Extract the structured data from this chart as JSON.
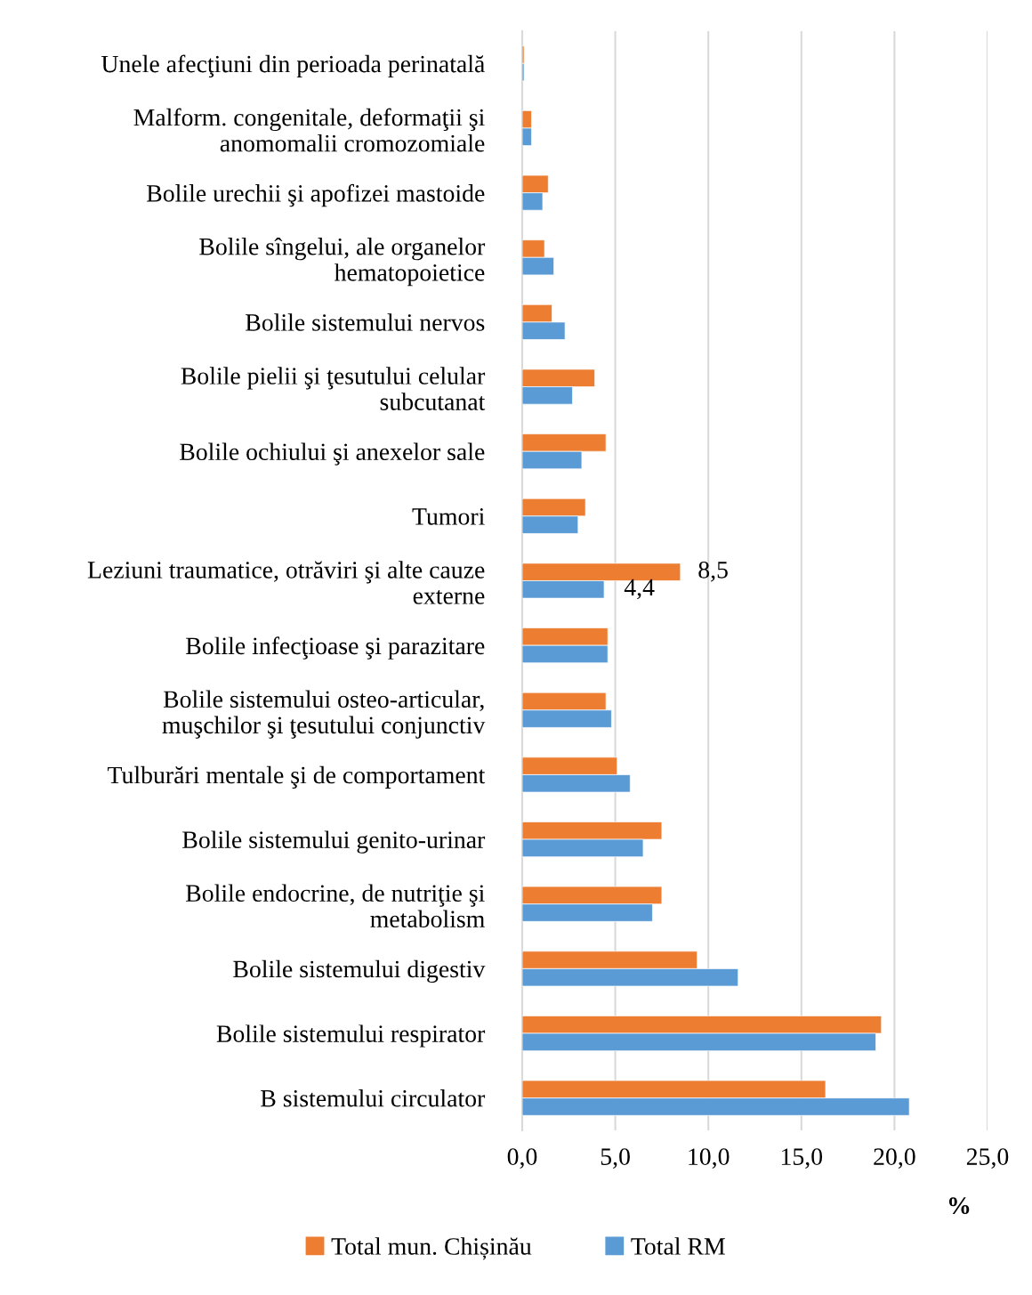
{
  "chart_data": {
    "type": "bar",
    "orientation": "horizontal",
    "xlabel": "%",
    "categories": [
      "Unele afecţiuni din perioada perinatală",
      "Malform. congenitale, deformaţii şi\nanomomalii cromozomiale",
      "Bolile urechii şi apofizei mastoide",
      "Bolile sîngelui, ale organelor\nhematopoietice",
      "Bolile sistemului nervos",
      "Bolile pielii şi ţesutului celular\nsubcutanat",
      "Bolile ochiului şi anexelor sale",
      "Tumori",
      "Leziuni traumatice, otrăviri şi alte cauze\nexterne",
      "Bolile infecţioase şi parazitare",
      "Bolile sistemului osteo-articular,\nmuşchilor şi ţesutului conjunctiv",
      "Tulburări mentale şi de comportament",
      "Bolile sistemului genito-urinar",
      "Bolile endocrine, de nutriţie şi\nmetabolism",
      "Bolile sistemului digestiv",
      "Bolile sistemului respirator",
      "B sistemului circulator"
    ],
    "series": [
      {
        "name": "Total mun. Chișinău",
        "color": "#ed7d31",
        "values": [
          0.1,
          0.5,
          1.4,
          1.2,
          1.6,
          3.9,
          4.5,
          3.4,
          8.5,
          4.6,
          4.5,
          5.1,
          7.5,
          7.5,
          9.4,
          19.3,
          16.3
        ],
        "value_labels": [
          null,
          null,
          null,
          null,
          null,
          null,
          null,
          null,
          "8,5",
          null,
          null,
          null,
          null,
          null,
          null,
          null,
          null
        ]
      },
      {
        "name": "Total RM",
        "color": "#5b9bd5",
        "values": [
          0.1,
          0.5,
          1.1,
          1.7,
          2.3,
          2.7,
          3.2,
          3.0,
          4.4,
          4.6,
          4.8,
          5.8,
          6.5,
          7.0,
          11.6,
          19.0,
          20.8
        ],
        "value_labels": [
          null,
          null,
          null,
          null,
          null,
          null,
          null,
          null,
          "4,4",
          null,
          null,
          null,
          null,
          null,
          null,
          null,
          null
        ]
      }
    ],
    "xlim": [
      0,
      25
    ],
    "xticks": [
      {
        "value": 0,
        "label": "0,0"
      },
      {
        "value": 5,
        "label": "5,0"
      },
      {
        "value": 10,
        "label": "10,0"
      },
      {
        "value": 15,
        "label": "15,0"
      },
      {
        "value": 20,
        "label": "20,0"
      },
      {
        "value": 25,
        "label": "25,0"
      }
    ],
    "grid": "x",
    "legend": "bottom"
  }
}
